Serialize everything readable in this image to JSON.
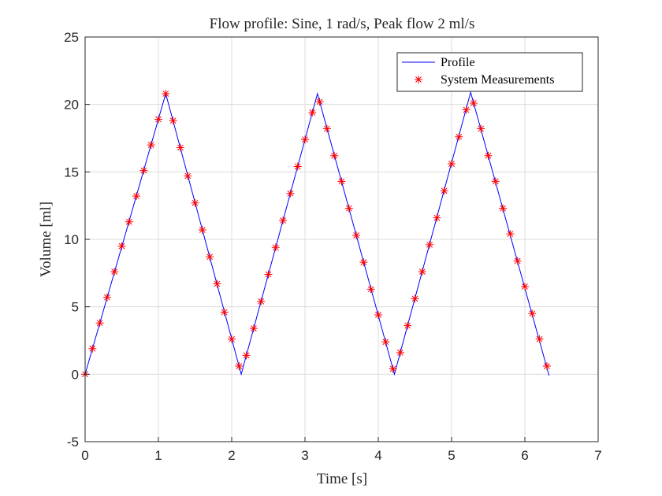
{
  "chart_data": {
    "type": "line",
    "title": "Flow profile: Sine, 1 rad/s, Peak flow 2 ml/s",
    "x_label": "Time [s]",
    "y_label": "Volume [ml]",
    "xlim": [
      0,
      7
    ],
    "xticks": [
      0,
      1,
      2,
      3,
      4,
      5,
      6,
      7
    ],
    "ylim": [
      -5,
      25
    ],
    "yticks": [
      -5,
      0,
      5,
      10,
      15,
      20,
      25
    ],
    "grid": true,
    "legend": "upper right",
    "series": [
      {
        "name": "Profile",
        "type": "line",
        "color": "#0000ff",
        "x": [
          0,
          1.1,
          2.13,
          3.17,
          4.22,
          5.26,
          6.33
        ],
        "y": [
          0,
          20.8,
          0,
          20.8,
          0,
          20.9,
          -0.1
        ]
      },
      {
        "name": "System Measurements",
        "type": "scatter",
        "color": "#ff0000",
        "x": [
          0,
          0.1,
          0.2,
          0.3,
          0.4,
          0.5,
          0.6,
          0.7,
          0.8,
          0.9,
          1.0,
          1.1,
          1.2,
          1.3,
          1.4,
          1.5,
          1.6,
          1.7,
          1.8,
          1.9,
          2.0,
          2.1,
          2.2,
          2.3,
          2.4,
          2.5,
          2.6,
          2.7,
          2.8,
          2.9,
          3.0,
          3.1,
          3.2,
          3.3,
          3.4,
          3.5,
          3.6,
          3.7,
          3.8,
          3.9,
          4.0,
          4.1,
          4.2,
          4.3,
          4.4,
          4.5,
          4.6,
          4.7,
          4.8,
          4.9,
          5.0,
          5.1,
          5.2,
          5.3,
          5.4,
          5.5,
          5.6,
          5.7,
          5.8,
          5.9,
          6.0,
          6.1,
          6.2,
          6.3
        ],
        "y": [
          0,
          1.9,
          3.8,
          5.7,
          7.6,
          9.5,
          11.3,
          13.2,
          15.1,
          17.0,
          18.9,
          20.8,
          18.8,
          16.8,
          14.7,
          12.7,
          10.7,
          8.7,
          6.7,
          4.6,
          2.6,
          0.6,
          1.4,
          3.4,
          5.4,
          7.4,
          9.4,
          11.4,
          13.4,
          15.4,
          17.4,
          19.4,
          20.2,
          18.2,
          16.2,
          14.3,
          12.3,
          10.3,
          8.3,
          6.3,
          4.4,
          2.4,
          0.4,
          1.6,
          3.6,
          5.6,
          7.6,
          9.6,
          11.6,
          13.6,
          15.6,
          17.6,
          19.6,
          20.1,
          18.2,
          16.2,
          14.3,
          12.3,
          10.4,
          8.4,
          6.5,
          4.5,
          2.6,
          0.6
        ]
      }
    ]
  }
}
